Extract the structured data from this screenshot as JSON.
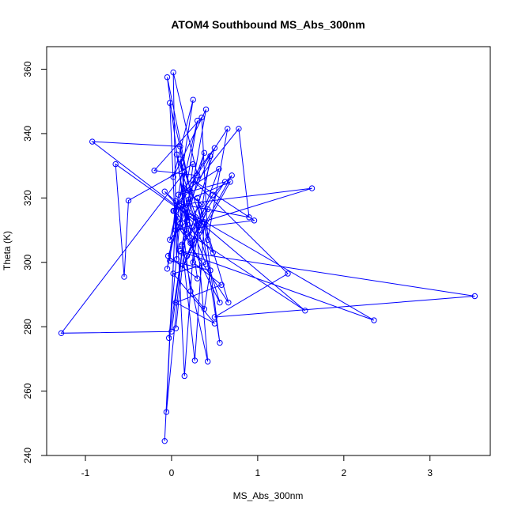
{
  "chart_data": {
    "type": "line",
    "title": "ATOM4 Southbound MS_Abs_300nm",
    "xlabel": "MS_Abs_300nm",
    "ylabel": "Theta (K)",
    "xlim": [
      -1.45,
      3.7
    ],
    "ylim": [
      240,
      367
    ],
    "xticks": [
      -1,
      0,
      1,
      2,
      3
    ],
    "yticks": [
      240,
      260,
      280,
      300,
      320,
      340,
      360
    ],
    "grid": false,
    "markers": "open-circle",
    "colors": {
      "series": "#0000ff",
      "axis": "#000000"
    },
    "series": [
      {
        "points": [
          [
            -0.08,
            244.5
          ],
          [
            0.05,
            316
          ],
          [
            -0.06,
            253.5
          ],
          [
            0.12,
            303
          ],
          [
            -0.03,
            276.5
          ],
          [
            0.15,
            328
          ],
          [
            -1.28,
            278
          ],
          [
            0.0,
            278.5
          ],
          [
            0.25,
            330.5
          ],
          [
            -0.5,
            319.2
          ],
          [
            -0.55,
            295.5
          ],
          [
            -0.65,
            330.5
          ],
          [
            0.32,
            312
          ],
          [
            -0.92,
            337.5
          ],
          [
            0.1,
            336
          ],
          [
            0.18,
            309
          ],
          [
            -0.05,
            357.5
          ],
          [
            0.22,
            322
          ],
          [
            -0.02,
            349.5
          ],
          [
            0.06,
            301
          ],
          [
            0.02,
            359
          ],
          [
            0.3,
            327
          ],
          [
            -0.2,
            328.5
          ],
          [
            0.35,
            345
          ],
          [
            0.42,
            307
          ],
          [
            0.65,
            341.5
          ],
          [
            0.02,
            316
          ],
          [
            0.78,
            341.5
          ],
          [
            0.9,
            314
          ],
          [
            0.12,
            318
          ],
          [
            1.63,
            323
          ],
          [
            0.05,
            310
          ],
          [
            0.96,
            313
          ],
          [
            0.25,
            325.5
          ],
          [
            1.35,
            296.5
          ],
          [
            0.5,
            283
          ],
          [
            3.52,
            289.5
          ],
          [
            0.1,
            303.5
          ],
          [
            2.35,
            282
          ],
          [
            0.2,
            315.5
          ],
          [
            1.55,
            285
          ],
          [
            0.08,
            311
          ],
          [
            0.66,
            287.5
          ],
          [
            0.3,
            320
          ],
          [
            0.56,
            275
          ],
          [
            0.38,
            312.5
          ],
          [
            0.27,
            269.5
          ],
          [
            0.12,
            305.5
          ],
          [
            0.42,
            269.2
          ],
          [
            0.28,
            314
          ],
          [
            0.15,
            264.7
          ],
          [
            0.05,
            319
          ],
          [
            -0.02,
            300.5
          ],
          [
            0.45,
            297.5
          ],
          [
            0.38,
            285.5
          ],
          [
            0.22,
            291
          ],
          [
            0.1,
            317.5
          ],
          [
            -0.05,
            298
          ],
          [
            0.25,
            350.5
          ],
          [
            0.02,
            326.5
          ],
          [
            0.4,
            347.5
          ],
          [
            0.12,
            305
          ],
          [
            0.48,
            321
          ],
          [
            0.7,
            327
          ],
          [
            0.18,
            302
          ],
          [
            0.55,
            329
          ],
          [
            0.08,
            321
          ],
          [
            0.62,
            325
          ],
          [
            0.2,
            308
          ],
          [
            0.5,
            335.5
          ],
          [
            0.15,
            323
          ],
          [
            0.35,
            318
          ],
          [
            -0.02,
            307
          ],
          [
            0.3,
            344
          ],
          [
            0.1,
            312
          ],
          [
            0.45,
            333
          ],
          [
            0.25,
            300
          ],
          [
            0.58,
            293
          ],
          [
            0.05,
            287.5
          ],
          [
            0.5,
            281
          ],
          [
            0.02,
            296.5
          ],
          [
            0.4,
            299.5
          ],
          [
            0.15,
            316.5
          ],
          [
            -0.08,
            322
          ],
          [
            0.33,
            310
          ],
          [
            0.06,
            333.5
          ],
          [
            0.22,
            306
          ],
          [
            0.42,
            316.5
          ],
          [
            0.12,
            298
          ],
          [
            0.68,
            325
          ],
          [
            0.2,
            319.5
          ],
          [
            0.56,
            287.5
          ],
          [
            0.03,
            316
          ],
          [
            0.48,
            303
          ],
          [
            0.1,
            332
          ],
          [
            0.3,
            295
          ],
          [
            -0.04,
            302
          ],
          [
            0.38,
            334
          ],
          [
            0.18,
            313
          ],
          [
            0.05,
            279.5
          ]
        ]
      }
    ]
  }
}
